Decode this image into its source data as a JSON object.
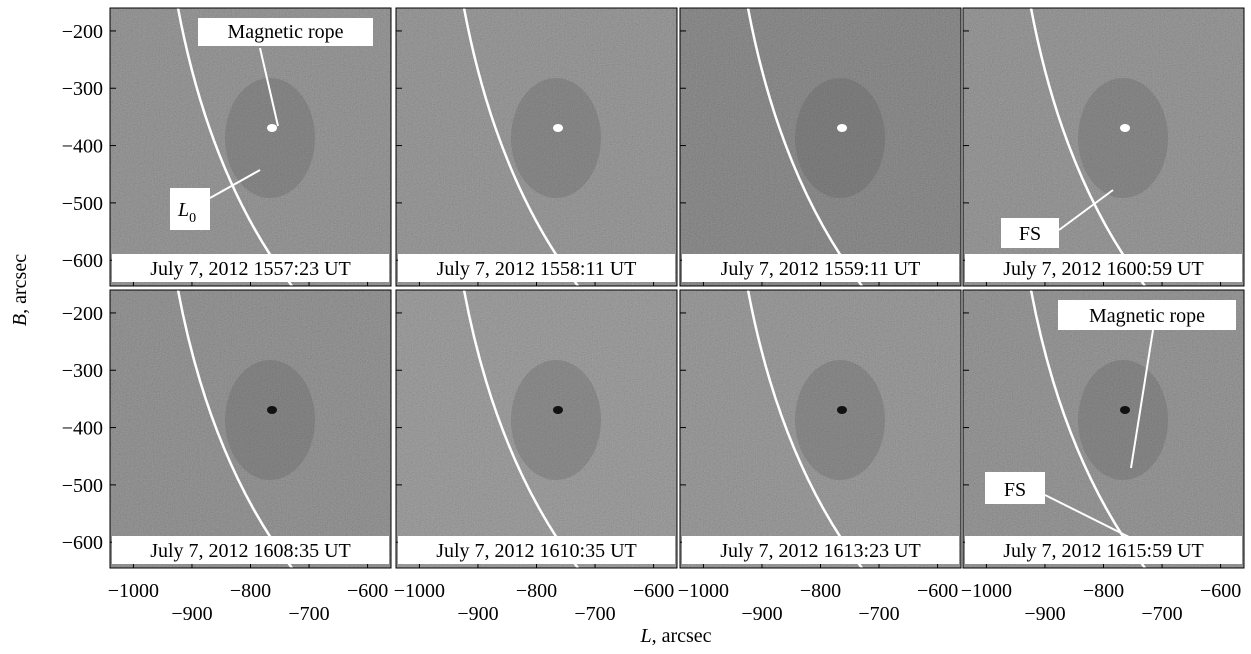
{
  "axes": {
    "ylabel": {
      "symbol": "B",
      "unit": ", arcsec"
    },
    "xlabel": {
      "symbol": "L",
      "unit": ", arcsec"
    },
    "xlim": [
      -1040,
      -560
    ],
    "ylim": [
      -645,
      -160
    ],
    "xticks": [
      {
        "value": -1000,
        "label": "−1000"
      },
      {
        "value": -900,
        "label": "−900"
      },
      {
        "value": -800,
        "label": "−800"
      },
      {
        "value": -700,
        "label": "−700"
      },
      {
        "value": -600,
        "label": "−600"
      }
    ],
    "yticks": [
      {
        "value": -200,
        "label": "−200"
      },
      {
        "value": -300,
        "label": "−300"
      },
      {
        "value": -400,
        "label": "−400"
      },
      {
        "value": -500,
        "label": "−500"
      },
      {
        "value": -600,
        "label": "−600"
      }
    ]
  },
  "panels": [
    {
      "timestamp": "July 7, 2012 1557:23 UT",
      "annotations": [
        {
          "text": "Magnetic rope"
        },
        {
          "symbol": "L",
          "subscript": "0"
        }
      ]
    },
    {
      "timestamp": "July 7, 2012 1558:11 UT",
      "annotations": []
    },
    {
      "timestamp": "July 7, 2012 1559:11 UT",
      "annotations": []
    },
    {
      "timestamp": "July 7, 2012 1600:59 UT",
      "annotations": [
        {
          "text": "FS"
        }
      ]
    },
    {
      "timestamp": "July 7, 2012 1608:35 UT",
      "annotations": []
    },
    {
      "timestamp": "July 7, 2012 1610:35 UT",
      "annotations": []
    },
    {
      "timestamp": "July 7, 2012 1613:23 UT",
      "annotations": []
    },
    {
      "timestamp": "July 7, 2012 1615:59 UT",
      "annotations": [
        {
          "text": "Magnetic rope"
        },
        {
          "text": "FS"
        }
      ]
    }
  ]
}
